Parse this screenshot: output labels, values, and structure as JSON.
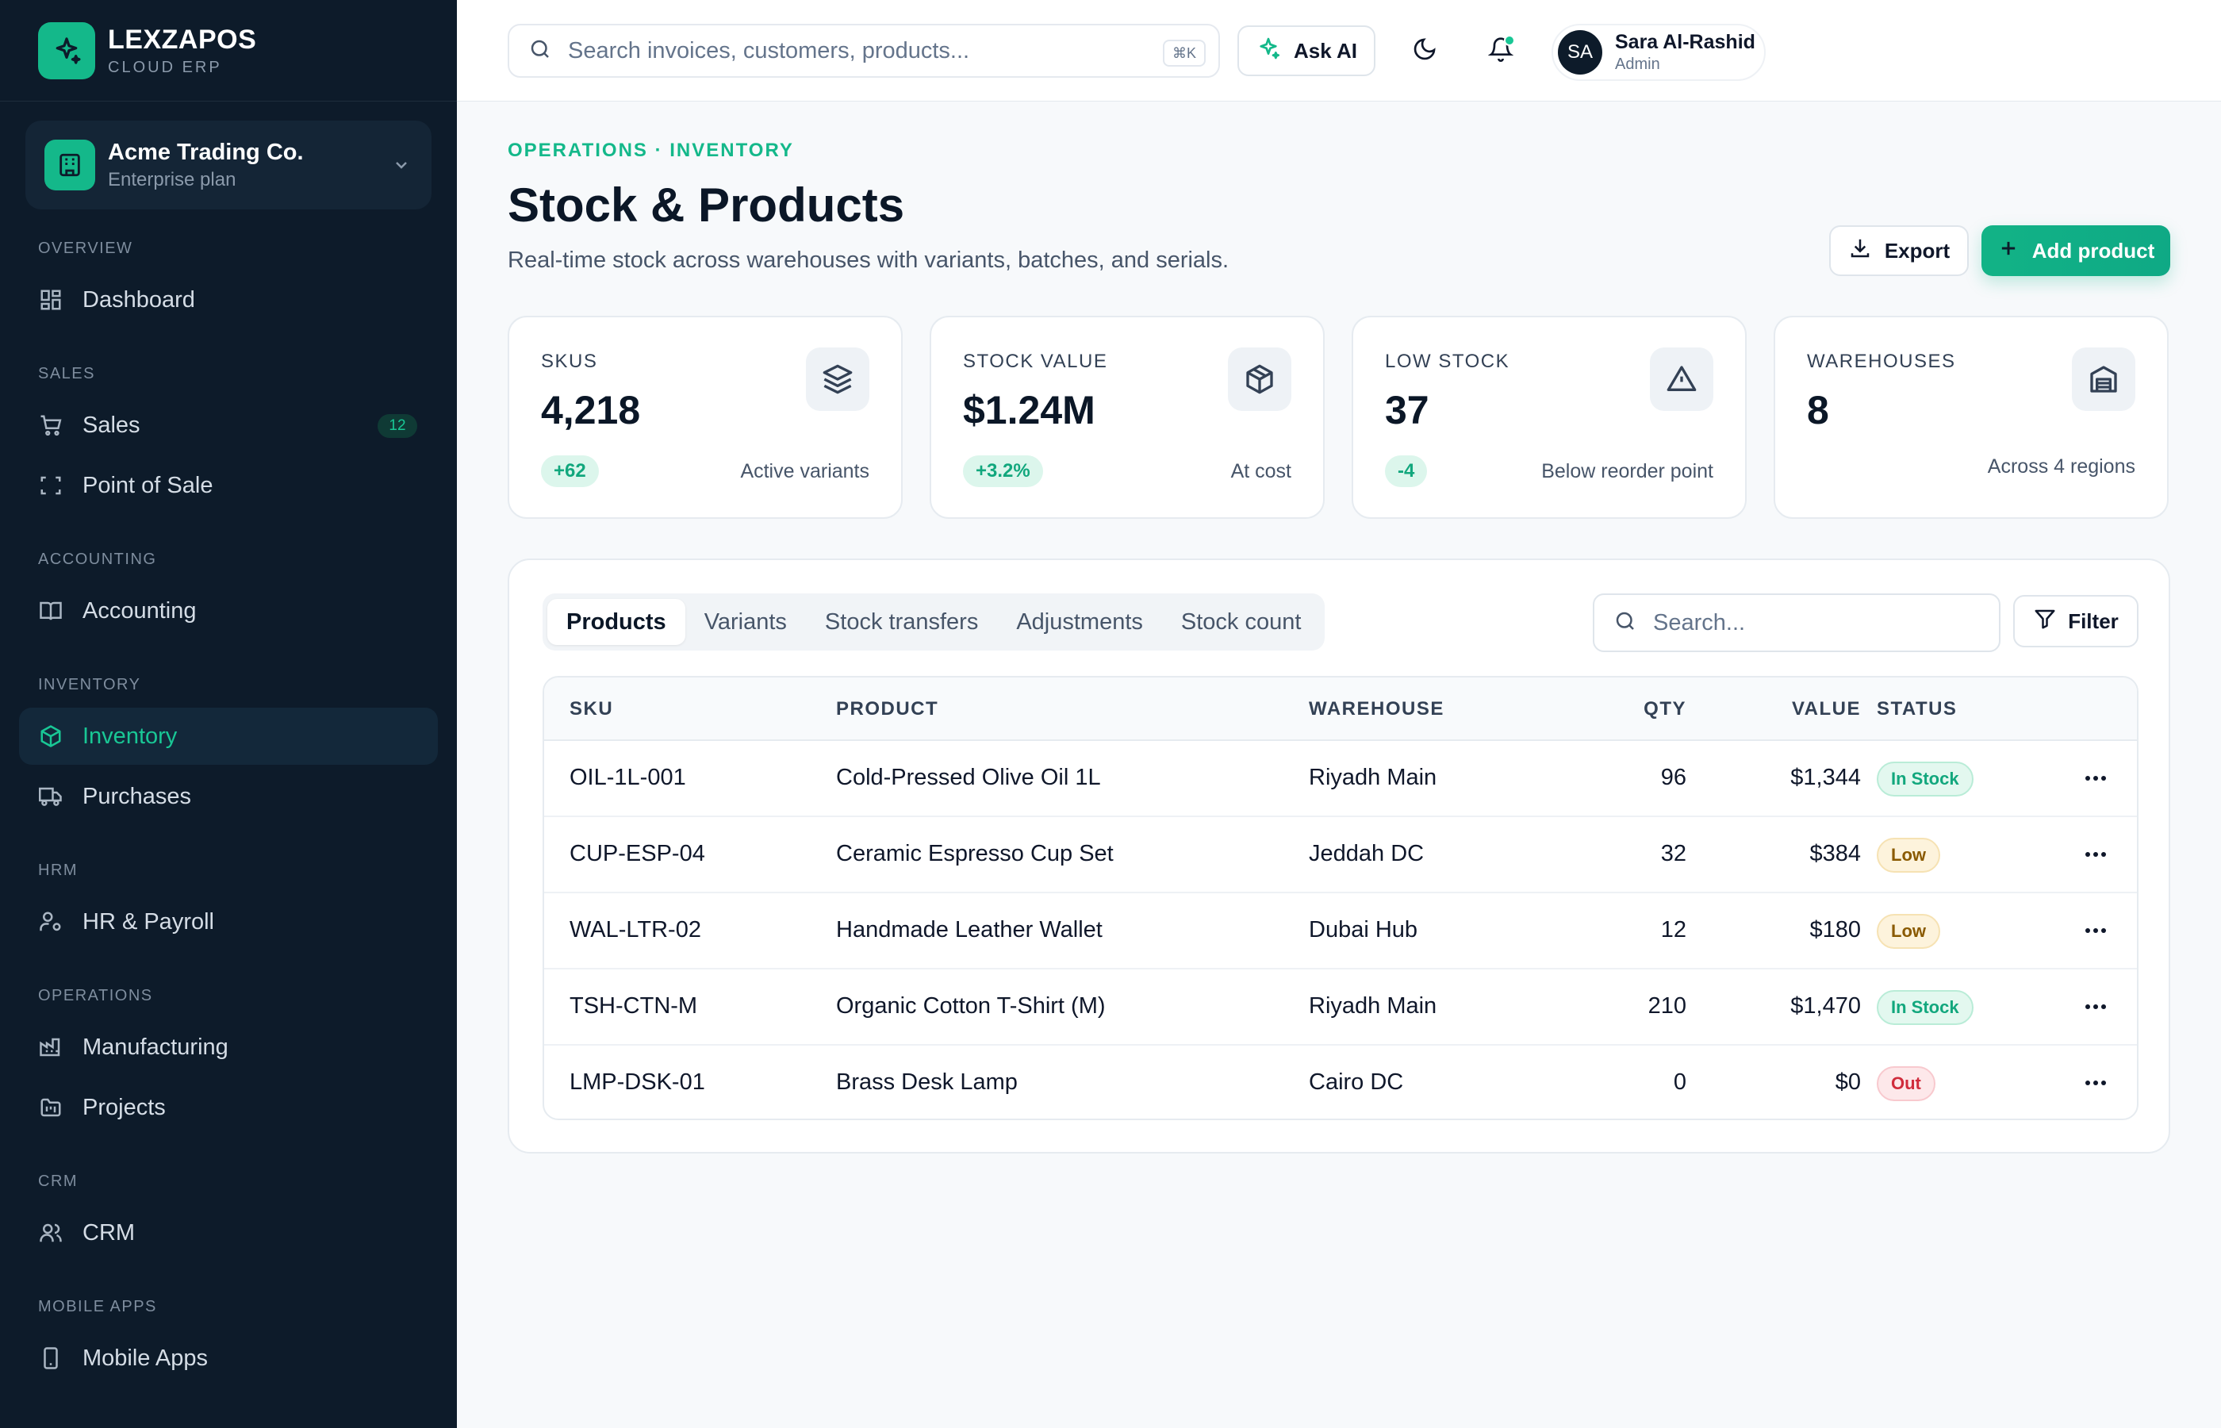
{
  "brand": {
    "name": "LEXZAPOS",
    "sub": "CLOUD ERP"
  },
  "org": {
    "name": "Acme Trading Co.",
    "plan": "Enterprise plan"
  },
  "nav": {
    "sections": [
      "OVERVIEW",
      "SALES",
      "ACCOUNTING",
      "INVENTORY",
      "HRM",
      "OPERATIONS",
      "CRM",
      "MOBILE APPS"
    ],
    "items": [
      {
        "label": "Dashboard",
        "icon": "grid-icon"
      },
      {
        "label": "Sales",
        "icon": "cart-icon",
        "badge": "12"
      },
      {
        "label": "Point of Sale",
        "icon": "scan-icon"
      },
      {
        "label": "Accounting",
        "icon": "book-icon"
      },
      {
        "label": "Inventory",
        "icon": "box-icon",
        "active": true
      },
      {
        "label": "Purchases",
        "icon": "truck-icon"
      },
      {
        "label": "HR & Payroll",
        "icon": "user-cog-icon"
      },
      {
        "label": "Manufacturing",
        "icon": "factory-icon"
      },
      {
        "label": "Projects",
        "icon": "folder-kanban-icon"
      },
      {
        "label": "CRM",
        "icon": "users-icon"
      },
      {
        "label": "Mobile Apps",
        "icon": "phone-icon"
      }
    ]
  },
  "topbar": {
    "search_placeholder": "Search invoices, customers, products...",
    "shortcut": "⌘K",
    "ask_ai": "Ask AI",
    "user": {
      "initials": "SA",
      "name": "Sara Al-Rashid",
      "role": "Admin"
    }
  },
  "header": {
    "breadcrumb": "OPERATIONS · INVENTORY",
    "title": "Stock & Products",
    "subtitle": "Real-time stock across warehouses with variants, batches, and serials.",
    "export_label": "Export",
    "add_label": "Add product"
  },
  "stats": [
    {
      "label": "SKUS",
      "value": "4,218",
      "delta": "+62",
      "foot": "Active variants",
      "icon": "layers-icon"
    },
    {
      "label": "STOCK VALUE",
      "value": "$1.24M",
      "delta": "+3.2%",
      "foot": "At cost",
      "icon": "package-icon"
    },
    {
      "label": "LOW STOCK",
      "value": "37",
      "delta": "-4",
      "foot": "Below reorder point",
      "icon": "alert-triangle-icon"
    },
    {
      "label": "WAREHOUSES",
      "value": "8",
      "delta": "",
      "foot": "Across 4 regions",
      "icon": "warehouse-icon"
    }
  ],
  "tabs": [
    "Products",
    "Variants",
    "Stock transfers",
    "Adjustments",
    "Stock count"
  ],
  "table": {
    "search_placeholder": "Search...",
    "filter_label": "Filter",
    "columns": [
      "SKU",
      "PRODUCT",
      "WAREHOUSE",
      "QTY",
      "VALUE",
      "STATUS"
    ],
    "rows": [
      {
        "sku": "OIL-1L-001",
        "product": "Cold-Pressed Olive Oil 1L",
        "warehouse": "Riyadh Main",
        "qty": "96",
        "value": "$1,344",
        "status": "In Stock"
      },
      {
        "sku": "CUP-ESP-04",
        "product": "Ceramic Espresso Cup Set",
        "warehouse": "Jeddah DC",
        "qty": "32",
        "value": "$384",
        "status": "Low"
      },
      {
        "sku": "WAL-LTR-02",
        "product": "Handmade Leather Wallet",
        "warehouse": "Dubai Hub",
        "qty": "12",
        "value": "$180",
        "status": "Low"
      },
      {
        "sku": "TSH-CTN-M",
        "product": "Organic Cotton T-Shirt (M)",
        "warehouse": "Riyadh Main",
        "qty": "210",
        "value": "$1,470",
        "status": "In Stock"
      },
      {
        "sku": "LMP-DSK-01",
        "product": "Brass Desk Lamp",
        "warehouse": "Cairo DC",
        "qty": "0",
        "value": "$0",
        "status": "Out"
      }
    ]
  },
  "colors": {
    "accent": "#14b88a",
    "sidebar": "#0d1b2a",
    "danger": "#d02c3c",
    "warning": "#8a5a00"
  }
}
